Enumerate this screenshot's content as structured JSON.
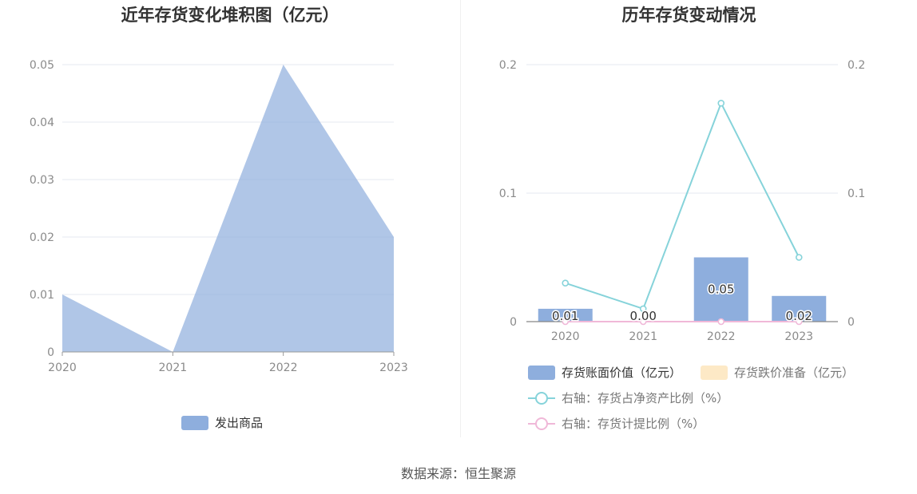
{
  "chart_data": [
    {
      "type": "area",
      "title": "近年存货变化堆积图（亿元）",
      "categories": [
        "2020",
        "2021",
        "2022",
        "2023"
      ],
      "yticks": [
        "0",
        "0.01",
        "0.02",
        "0.03",
        "0.04",
        "0.05"
      ],
      "ylim": [
        0,
        0.05
      ],
      "grid": true,
      "legend_placement": "bottom",
      "series": [
        {
          "name": "发出商品",
          "values": [
            0.01,
            0.0,
            0.05,
            0.02
          ],
          "color": "#8eaedd"
        }
      ]
    },
    {
      "type": "bar",
      "title": "历年存货变动情况",
      "categories": [
        "2020",
        "2021",
        "2022",
        "2023"
      ],
      "yticks_left": [
        "0",
        "0.1",
        "0.2"
      ],
      "yticks_right": [
        "0",
        "0.1",
        "0.2"
      ],
      "ylim_left": [
        0,
        0.2
      ],
      "ylim_right": [
        0,
        0.2
      ],
      "grid": true,
      "legend_placement": "bottom",
      "bar_labels": [
        "0.01",
        "0.00",
        "0.05",
        "0.02"
      ],
      "series": [
        {
          "name": "存货账面价值（亿元）",
          "type": "bar",
          "axis": "left",
          "values": [
            0.01,
            0.0,
            0.05,
            0.02
          ],
          "color": "#8eaedd"
        },
        {
          "name": "存货跌价准备（亿元）",
          "type": "bar",
          "axis": "left",
          "values": [
            0,
            0,
            0,
            0
          ],
          "color": "#fde9c6"
        },
        {
          "name": "右轴：存货占净资产比例（%）",
          "type": "line",
          "axis": "right",
          "values": [
            0.03,
            0.01,
            0.17,
            0.05
          ],
          "color": "#86d3da"
        },
        {
          "name": "右轴：存货计提比例（%）",
          "type": "line",
          "axis": "right",
          "values": [
            0,
            0,
            0,
            0
          ],
          "color": "#f0b8d8"
        }
      ]
    }
  ],
  "source": "数据来源：恒生聚源"
}
